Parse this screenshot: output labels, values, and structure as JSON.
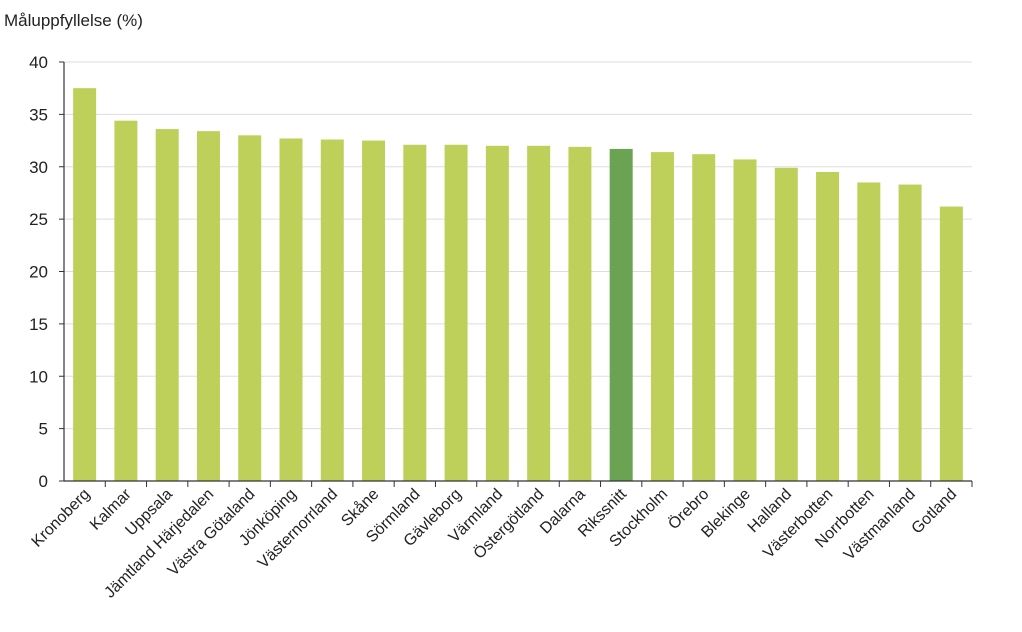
{
  "chart_data": {
    "type": "bar",
    "ylabel": "Måluppfyllelse (%)",
    "xlabel": "",
    "title": "",
    "ylim": [
      0,
      40
    ],
    "yticks": [
      0,
      5,
      10,
      15,
      20,
      25,
      30,
      35,
      40
    ],
    "grid": true,
    "categories": [
      "Kronoberg",
      "Kalmar",
      "Uppsala",
      "Jämtland Härjedalen",
      "Västra Götaland",
      "Jönköping",
      "Västernorrland",
      "Skåne",
      "Sörmland",
      "Gävleborg",
      "Värmland",
      "Östergötland",
      "Dalarna",
      "Rikssnitt",
      "Stockholm",
      "Örebro",
      "Blekinge",
      "Halland",
      "Västerbotten",
      "Norrbotten",
      "Västmanland",
      "Gotland"
    ],
    "values": [
      37.5,
      34.4,
      33.6,
      33.4,
      33.0,
      32.7,
      32.6,
      32.5,
      32.1,
      32.1,
      32.0,
      32.0,
      31.9,
      31.7,
      31.4,
      31.2,
      30.7,
      29.9,
      29.5,
      28.5,
      28.3,
      26.2
    ],
    "highlight_category": "Rikssnitt",
    "colors": {
      "bar": "#bfd05a",
      "highlight": "#6aa352",
      "grid": "#dddddd",
      "axis": "#333333"
    }
  }
}
